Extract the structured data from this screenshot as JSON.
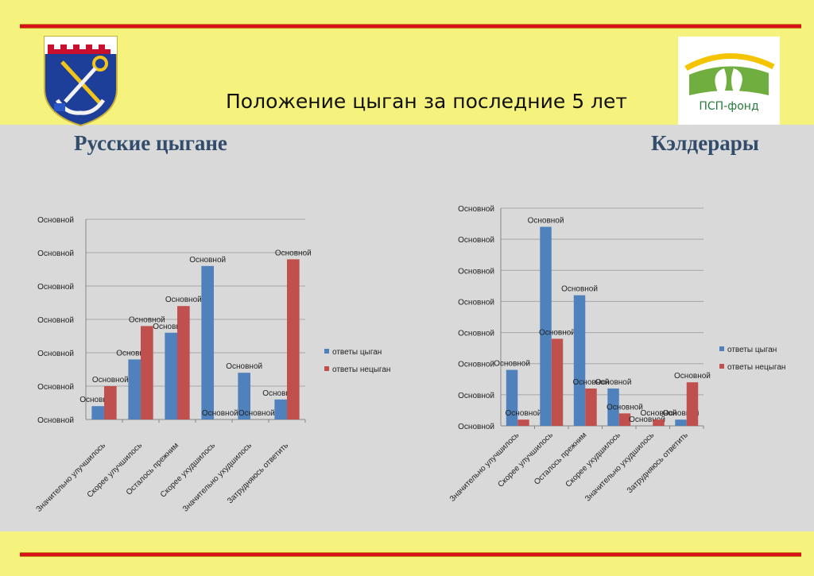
{
  "page": {
    "title": "Положение цыган за последние 5 лет",
    "left_heading": "Русские цыгане",
    "right_heading": "Кэлдерары",
    "logo_text": "ПСП-фонд",
    "colors": {
      "background": "#f6f27e",
      "panel": "#d9d9d9",
      "rule": "#d8101a",
      "heading": "#324d6b"
    }
  },
  "chart_data": [
    {
      "type": "bar",
      "title": "",
      "categories": [
        "Значительно улучшилось",
        "Скорее улучшилось",
        "Осталось прежним",
        "Скорее ухудшилось",
        "Значительно ухудшилось",
        "Затрудняюсь ответить"
      ],
      "series": [
        {
          "name": "ответы цыган",
          "color": "#4f81bd",
          "values": [
            2,
            9,
            13,
            23,
            7,
            3
          ]
        },
        {
          "name": "ответы нецыган",
          "color": "#c0504d",
          "values": [
            5,
            14,
            17,
            0,
            0,
            24
          ]
        }
      ],
      "ytick_labels": [
        "Основной",
        "Основной",
        "Основной",
        "Основной",
        "Основной",
        "Основной",
        "Основной"
      ],
      "data_label": "Основной",
      "ylim": [
        0,
        30
      ],
      "grid": true,
      "legend": "right"
    },
    {
      "type": "bar",
      "title": "",
      "categories": [
        "Значительно улучшилось",
        "Скорее улучшилось",
        "Осталось прежним",
        "Скорее ухудшилось",
        "Значительно ухудшилось",
        "Затрудняюсь ответить"
      ],
      "series": [
        {
          "name": "ответы цыган",
          "color": "#4f81bd",
          "values": [
            9,
            32,
            21,
            6,
            0,
            1
          ]
        },
        {
          "name": "ответы нецыган",
          "color": "#c0504d",
          "values": [
            1,
            14,
            6,
            2,
            1,
            7
          ]
        }
      ],
      "ytick_labels": [
        "Основной",
        "Основной",
        "Основной",
        "Основной",
        "Основной",
        "Основной",
        "Основной",
        "Основной"
      ],
      "data_label": "Основной",
      "ylim": [
        0,
        35
      ],
      "grid": true,
      "legend": "right"
    }
  ]
}
